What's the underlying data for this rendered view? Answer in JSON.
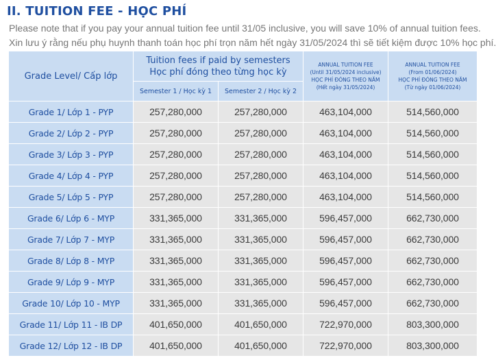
{
  "title": "II. TUITION FEE - HỌC PHÍ",
  "notes": {
    "english": "Please note that if you pay your annual tuition fee until 31/05 inclusive, you will save 10% of annual tuition fees.",
    "vietnamese": "Xin lưu ý rằng nếu phụ huynh thanh toán học phí trọn năm hết ngày 31/05/2024 thì sẽ tiết kiệm được 10% học phí."
  },
  "table": {
    "headers": {
      "grade_level": "Grade Level/ Cấp lớp",
      "semester_group_en": "Tuition fees if paid by semesters",
      "semester_group_vi": "Học phí đóng theo từng học kỳ",
      "semester_1": "Semester 1 / Học kỳ 1",
      "semester_2": "Semester 2 / Học kỳ 2",
      "annual_early": {
        "line1": "ANNUAL TUITION FEE",
        "line2": "(Until 31/05/2024 inclusive)",
        "line3": "HỌC PHÍ ĐÓNG THEO NĂM",
        "line4": "(Hết ngày 31/05/2024)"
      },
      "annual_regular": {
        "line1": "ANNUAL TUITION FEE",
        "line2": "(From 01/06/2024)",
        "line3": "HỌC PHÍ ĐÓNG THEO NĂM",
        "line4": "(Từ ngày 01/06/2024)"
      }
    },
    "rows": [
      {
        "grade": "Grade 1/ Lớp 1 - PYP",
        "sem1": "257,280,000",
        "sem2": "257,280,000",
        "annual_early": "463,104,000",
        "annual_regular": "514,560,000"
      },
      {
        "grade": "Grade 2/ Lớp 2 - PYP",
        "sem1": "257,280,000",
        "sem2": "257,280,000",
        "annual_early": "463,104,000",
        "annual_regular": "514,560,000"
      },
      {
        "grade": "Grade 3/ Lớp 3 - PYP",
        "sem1": "257,280,000",
        "sem2": "257,280,000",
        "annual_early": "463,104,000",
        "annual_regular": "514,560,000"
      },
      {
        "grade": "Grade 4/ Lớp 4 - PYP",
        "sem1": "257,280,000",
        "sem2": "257,280,000",
        "annual_early": "463,104,000",
        "annual_regular": "514,560,000"
      },
      {
        "grade": "Grade 5/ Lớp 5 - PYP",
        "sem1": "257,280,000",
        "sem2": "257,280,000",
        "annual_early": "463,104,000",
        "annual_regular": "514,560,000"
      },
      {
        "grade": "Grade 6/ Lớp 6 - MYP",
        "sem1": "331,365,000",
        "sem2": "331,365,000",
        "annual_early": "596,457,000",
        "annual_regular": "662,730,000"
      },
      {
        "grade": "Grade 7/ Lớp 7 - MYP",
        "sem1": "331,365,000",
        "sem2": "331,365,000",
        "annual_early": "596,457,000",
        "annual_regular": "662,730,000"
      },
      {
        "grade": "Grade 8/ Lớp 8 - MYP",
        "sem1": "331,365,000",
        "sem2": "331,365,000",
        "annual_early": "596,457,000",
        "annual_regular": "662,730,000"
      },
      {
        "grade": "Grade 9/ Lớp 9 - MYP",
        "sem1": "331,365,000",
        "sem2": "331,365,000",
        "annual_early": "596,457,000",
        "annual_regular": "662,730,000"
      },
      {
        "grade": "Grade 10/ Lớp 10 - MYP",
        "sem1": "331,365,000",
        "sem2": "331,365,000",
        "annual_early": "596,457,000",
        "annual_regular": "662,730,000"
      },
      {
        "grade": "Grade 11/ Lớp 11 - IB DP",
        "sem1": "401,650,000",
        "sem2": "401,650,000",
        "annual_early": "722,970,000",
        "annual_regular": "803,300,000"
      },
      {
        "grade": "Grade 12/ Lớp 12 - IB DP",
        "sem1": "401,650,000",
        "sem2": "401,650,000",
        "annual_early": "722,970,000",
        "annual_regular": "803,300,000"
      }
    ]
  }
}
